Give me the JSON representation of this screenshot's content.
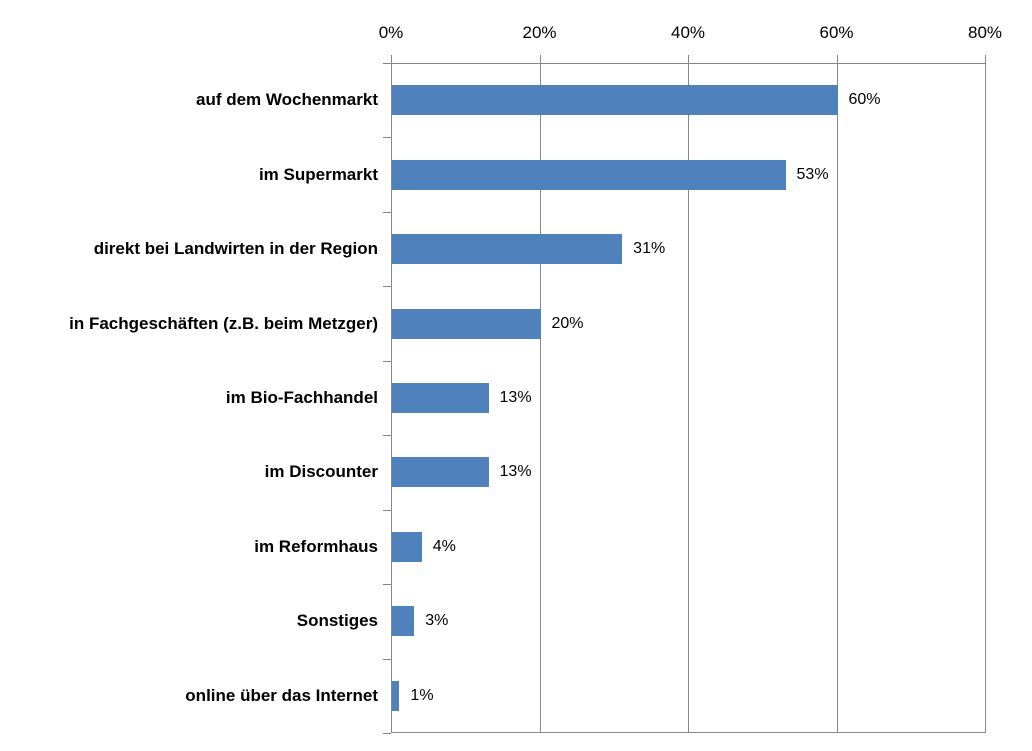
{
  "chart_data": {
    "type": "bar",
    "orientation": "horizontal",
    "title": "",
    "xlabel": "",
    "ylabel": "",
    "categories": [
      "auf dem Wochenmarkt",
      "im Supermarkt",
      "direkt bei Landwirten in der Region",
      "in Fachgeschäften (z.B. beim Metzger)",
      "im Bio-Fachhandel",
      "im Discounter",
      "im Reformhaus",
      "Sonstiges",
      "online über das Internet"
    ],
    "values": [
      60,
      53,
      31,
      20,
      13,
      13,
      4,
      3,
      1
    ],
    "value_labels": [
      "60%",
      "53%",
      "31%",
      "20%",
      "13%",
      "13%",
      "4%",
      "3%",
      "1%"
    ],
    "x_ticks": [
      0,
      20,
      40,
      60,
      80
    ],
    "x_tick_labels": [
      "0%",
      "20%",
      "40%",
      "60%",
      "80%"
    ],
    "xlim": [
      0,
      80
    ],
    "grid": true,
    "legend": false,
    "bar_color": "#4F81BD",
    "axis_color": "#878787",
    "text_color": "#000000"
  }
}
